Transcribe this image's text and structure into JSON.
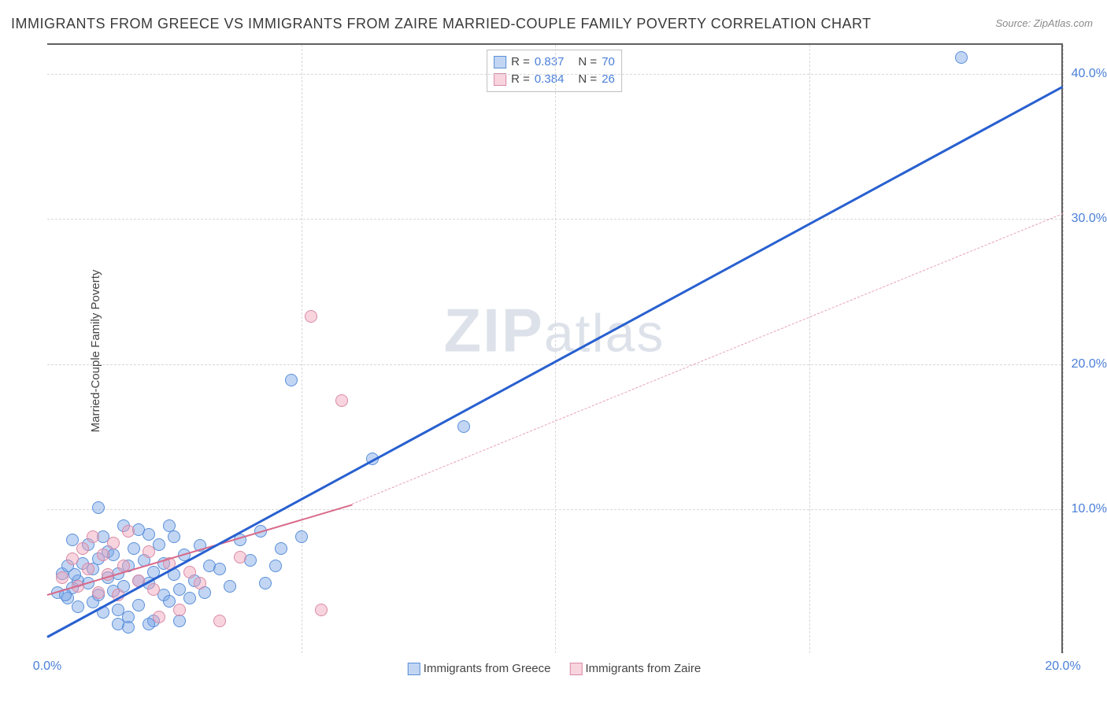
{
  "title": "IMMIGRANTS FROM GREECE VS IMMIGRANTS FROM ZAIRE MARRIED-COUPLE FAMILY POVERTY CORRELATION CHART",
  "source": "Source: ZipAtlas.com",
  "ylabel": "Married-Couple Family Poverty",
  "watermark": "ZIPatlas",
  "chart": {
    "type": "scatter",
    "xlim": [
      0,
      20
    ],
    "ylim": [
      0,
      42
    ],
    "xticks": [
      {
        "v": 0,
        "l": "0.0%"
      },
      {
        "v": 20,
        "l": "20.0%"
      }
    ],
    "yticks": [
      {
        "v": 10,
        "l": "10.0%"
      },
      {
        "v": 20,
        "l": "20.0%"
      },
      {
        "v": 30,
        "l": "30.0%"
      },
      {
        "v": 40,
        "l": "40.0%"
      }
    ],
    "grid_y": [
      10,
      20,
      30,
      40
    ],
    "grid_x": [
      5,
      10,
      15,
      20
    ],
    "background_color": "#ffffff",
    "grid_color": "#d8d8d8",
    "border_color": "#606060",
    "point_radius": 8,
    "point_border": 1,
    "line_width_solid": 3,
    "line_width_dash": 1.5
  },
  "series": {
    "greece": {
      "label": "Immigrants from Greece",
      "fill": "rgba(120,165,230,0.45)",
      "stroke": "#5a8fd8",
      "r_value": "0.837",
      "n_value": "70",
      "trend": {
        "x1": 0,
        "y1": 1.3,
        "x2": 20,
        "y2": 39.2,
        "dash": false,
        "color": "#2860d0"
      },
      "points": [
        [
          0.2,
          4.2
        ],
        [
          0.3,
          5.5
        ],
        [
          0.4,
          3.8
        ],
        [
          0.4,
          6.0
        ],
        [
          0.5,
          4.5
        ],
        [
          0.5,
          7.8
        ],
        [
          0.6,
          5.0
        ],
        [
          0.6,
          3.2
        ],
        [
          0.7,
          6.2
        ],
        [
          0.8,
          4.8
        ],
        [
          0.8,
          7.5
        ],
        [
          0.9,
          3.5
        ],
        [
          0.9,
          5.8
        ],
        [
          1.0,
          4.0
        ],
        [
          1.0,
          6.5
        ],
        [
          1.1,
          8.0
        ],
        [
          1.1,
          2.8
        ],
        [
          1.2,
          5.2
        ],
        [
          1.2,
          7.0
        ],
        [
          1.3,
          4.3
        ],
        [
          1.3,
          6.8
        ],
        [
          1.4,
          3.0
        ],
        [
          1.4,
          5.5
        ],
        [
          1.5,
          8.8
        ],
        [
          1.5,
          4.6
        ],
        [
          1.6,
          6.0
        ],
        [
          1.6,
          2.5
        ],
        [
          1.7,
          7.2
        ],
        [
          1.8,
          5.0
        ],
        [
          1.8,
          3.3
        ],
        [
          1.9,
          6.4
        ],
        [
          2.0,
          4.8
        ],
        [
          2.0,
          8.2
        ],
        [
          2.1,
          5.6
        ],
        [
          2.1,
          2.2
        ],
        [
          2.2,
          7.5
        ],
        [
          2.3,
          4.0
        ],
        [
          2.3,
          6.2
        ],
        [
          2.4,
          3.6
        ],
        [
          2.5,
          5.4
        ],
        [
          2.5,
          8.0
        ],
        [
          2.6,
          4.4
        ],
        [
          2.7,
          6.8
        ],
        [
          2.8,
          3.8
        ],
        [
          2.9,
          5.0
        ],
        [
          3.0,
          7.4
        ],
        [
          3.1,
          4.2
        ],
        [
          3.2,
          6.0
        ],
        [
          1.0,
          10.0
        ],
        [
          1.8,
          8.5
        ],
        [
          2.4,
          8.8
        ],
        [
          3.4,
          5.8
        ],
        [
          3.6,
          4.6
        ],
        [
          3.8,
          7.8
        ],
        [
          4.0,
          6.4
        ],
        [
          4.2,
          8.4
        ],
        [
          4.3,
          4.8
        ],
        [
          4.5,
          6.0
        ],
        [
          4.6,
          7.2
        ],
        [
          5.0,
          8.0
        ],
        [
          1.4,
          2.0
        ],
        [
          1.6,
          1.8
        ],
        [
          2.0,
          2.0
        ],
        [
          2.6,
          2.2
        ],
        [
          4.8,
          18.8
        ],
        [
          6.4,
          13.4
        ],
        [
          8.2,
          15.6
        ],
        [
          18.0,
          41.0
        ],
        [
          0.35,
          4.0
        ],
        [
          0.55,
          5.4
        ]
      ]
    },
    "zaire": {
      "label": "Immigrants from Zaire",
      "fill": "rgba(240,160,185,0.45)",
      "stroke": "#d88aa5",
      "r_value": "0.384",
      "n_value": "26",
      "trend_solid": {
        "x1": 0,
        "y1": 4.2,
        "x2": 6.0,
        "y2": 10.4,
        "dash": false,
        "color": "#d86a8a"
      },
      "trend_dash": {
        "x1": 6.0,
        "y1": 10.4,
        "x2": 20,
        "y2": 30.4,
        "dash": true,
        "color": "#e8a0b5"
      },
      "points": [
        [
          0.3,
          5.2
        ],
        [
          0.5,
          6.5
        ],
        [
          0.6,
          4.6
        ],
        [
          0.7,
          7.2
        ],
        [
          0.8,
          5.8
        ],
        [
          0.9,
          8.0
        ],
        [
          1.0,
          4.2
        ],
        [
          1.1,
          6.8
        ],
        [
          1.2,
          5.4
        ],
        [
          1.3,
          7.6
        ],
        [
          1.4,
          4.0
        ],
        [
          1.5,
          6.0
        ],
        [
          1.6,
          8.4
        ],
        [
          1.8,
          5.0
        ],
        [
          2.0,
          7.0
        ],
        [
          2.1,
          4.4
        ],
        [
          2.2,
          2.5
        ],
        [
          2.4,
          6.2
        ],
        [
          2.6,
          3.0
        ],
        [
          2.8,
          5.6
        ],
        [
          3.0,
          4.8
        ],
        [
          3.4,
          2.2
        ],
        [
          3.8,
          6.6
        ],
        [
          5.4,
          3.0
        ],
        [
          5.2,
          23.2
        ],
        [
          5.8,
          17.4
        ]
      ]
    }
  },
  "legend_top": [
    {
      "swfill": "rgba(120,165,230,0.45)",
      "swstroke": "#5a8fd8",
      "r_label": "R =",
      "r": "0.837",
      "n_label": "N =",
      "n": "70"
    },
    {
      "swfill": "rgba(240,160,185,0.45)",
      "swstroke": "#d88aa5",
      "r_label": "R =",
      "r": "0.384",
      "n_label": "N =",
      "n": "26"
    }
  ],
  "legend_bot": [
    {
      "swfill": "rgba(120,165,230,0.45)",
      "swstroke": "#5a8fd8",
      "label": "Immigrants from Greece"
    },
    {
      "swfill": "rgba(240,160,185,0.45)",
      "swstroke": "#d88aa5",
      "label": "Immigrants from Zaire"
    }
  ]
}
